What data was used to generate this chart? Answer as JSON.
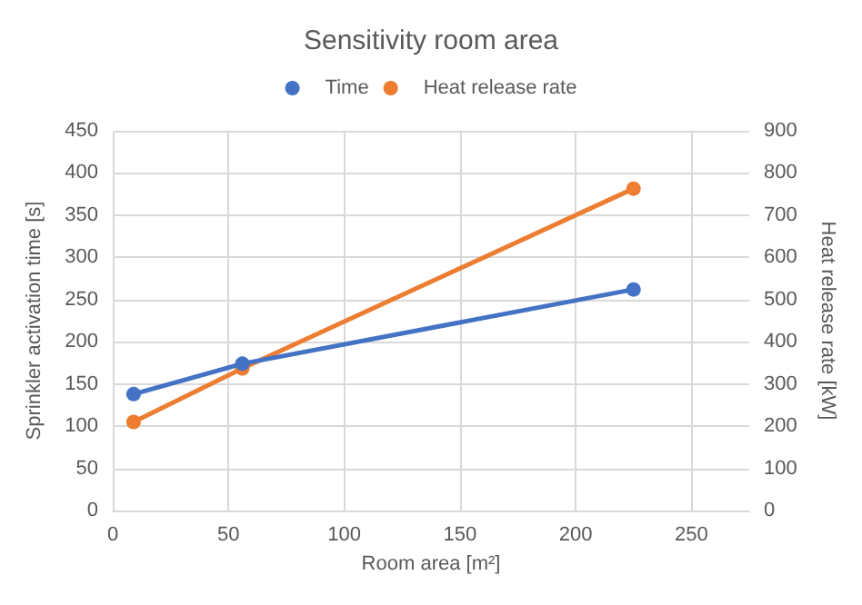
{
  "chart_data": {
    "type": "line",
    "title": "Sensitivity room area",
    "xlabel": "Room area [m²]",
    "ylabel": "Sprinkler activation time [s]",
    "y2label": "Heat release rate [kW]",
    "x": [
      9,
      56,
      225
    ],
    "series": [
      {
        "name": "Time",
        "color": "#4472c4",
        "values": [
          138,
          174,
          262
        ]
      },
      {
        "name": "Heat release rate",
        "color": "#ed7d31",
        "values": [
          210,
          337,
          763
        ],
        "axis": "y2"
      }
    ],
    "xlim": [
      0,
      275
    ],
    "xticks": [
      0,
      50,
      100,
      150,
      200,
      250
    ],
    "ylim": [
      0,
      450
    ],
    "yticks": [
      0,
      50,
      100,
      150,
      200,
      250,
      300,
      350,
      400,
      450
    ],
    "y2lim": [
      0,
      900
    ],
    "y2ticks": [
      0,
      100,
      200,
      300,
      400,
      500,
      600,
      700,
      800,
      900
    ],
    "grid": true,
    "legend": "top",
    "marker": "circle",
    "line_style": "solid"
  }
}
